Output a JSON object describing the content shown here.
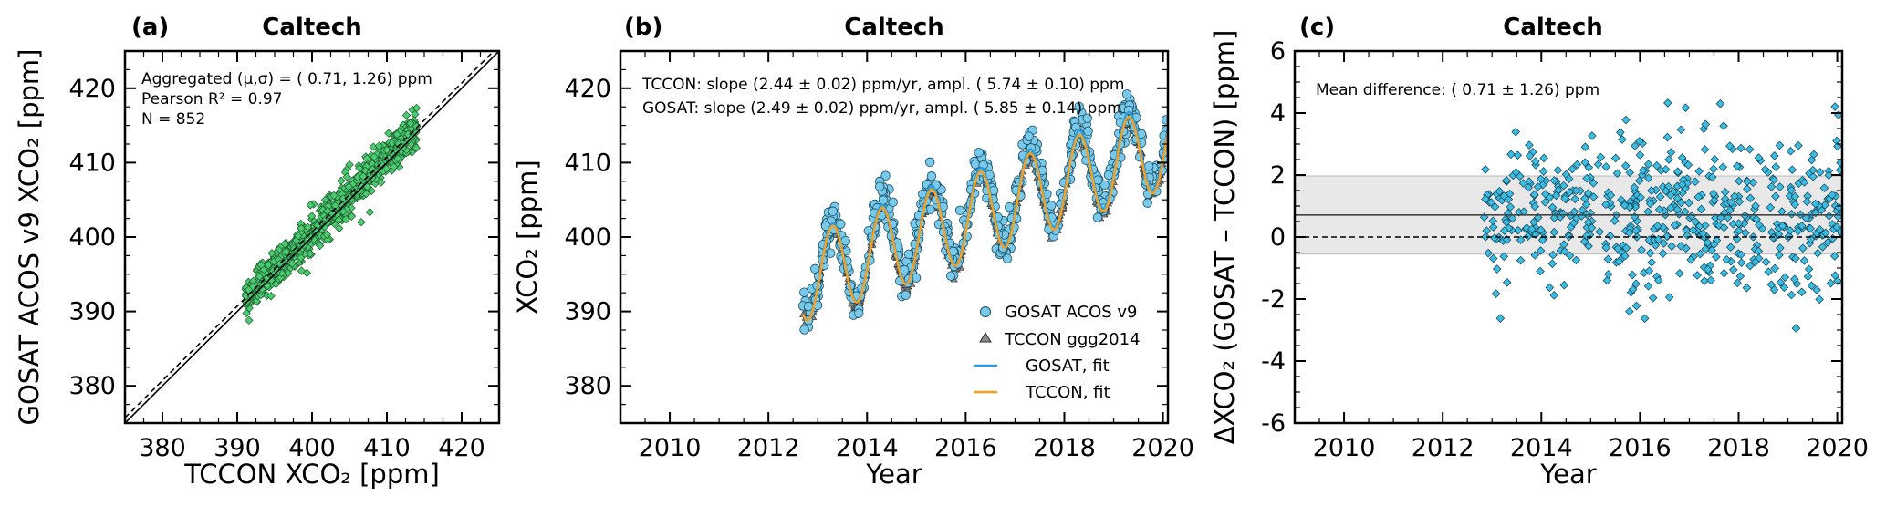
{
  "colors": {
    "scatter_green": "#4ccc70",
    "gosat_cyan": "#79c9ea",
    "tccon_gray": "#8a8a8a",
    "gosat_fit": "#2a9de0",
    "tccon_fit": "#f5a020",
    "diff_cyan": "#3cbce0",
    "band_fill": "#e8e8e8"
  },
  "chart_data": [
    {
      "type": "scatter",
      "panel_label": "(a)",
      "title": "Caltech",
      "xlabel": "TCCON XCO₂ [ppm]",
      "ylabel": "GOSAT ACOS v9 XCO₂ [ppm]",
      "xlim": [
        375,
        425
      ],
      "ylim": [
        375,
        425
      ],
      "xticks": [
        380,
        390,
        400,
        410,
        420
      ],
      "yticks": [
        380,
        390,
        400,
        410,
        420
      ],
      "annotations": [
        "Aggregated (μ,σ) = ( 0.71, 1.26) ppm",
        "Pearson R² = 0.97",
        "N =  852"
      ],
      "reference_lines": [
        {
          "name": "1:1 line",
          "style": "solid",
          "slope": 1,
          "intercept": 0
        },
        {
          "name": "mean offset",
          "style": "dashed",
          "slope": 1,
          "intercept": 0.71
        }
      ],
      "series": [
        {
          "name": "GOSAT vs TCCON",
          "n": 852,
          "x_range": [
            391,
            414
          ],
          "mean_offset": 0.71,
          "sd": 1.26
        }
      ]
    },
    {
      "type": "line",
      "panel_label": "(b)",
      "title": "Caltech",
      "xlabel": "Year",
      "ylabel": "XCO₂ [ppm]",
      "xlim": [
        2009,
        2020.1
      ],
      "ylim": [
        375,
        425
      ],
      "xticks": [
        2010,
        2012,
        2014,
        2016,
        2018,
        2020
      ],
      "yticks": [
        380,
        390,
        400,
        410,
        420
      ],
      "annotations": [
        "TCCON: slope (2.44 ± 0.02) ppm/yr, ampl. ( 5.74 ± 0.10) ppm",
        "GOSAT: slope (2.49 ± 0.02) ppm/yr, ampl. ( 5.85 ± 0.14) ppm"
      ],
      "legend": [
        "GOSAT ACOS v9",
        "TCCON ggg2014",
        "GOSAT, fit",
        "TCCON, fit"
      ],
      "legend_position": "bottom-right",
      "series": [
        {
          "name": "GOSAT ACOS v9",
          "marker": "circle",
          "t_range": [
            2012.7,
            2020.1
          ]
        },
        {
          "name": "TCCON ggg2014",
          "marker": "triangle",
          "t_range": [
            2012.7,
            2020.1
          ]
        },
        {
          "name": "GOSAT, fit",
          "t0": 2012.7,
          "base": 394.5,
          "slope": 2.49,
          "amplitude": 5.85
        },
        {
          "name": "TCCON, fit",
          "t0": 2012.7,
          "base": 394.3,
          "slope": 2.44,
          "amplitude": 5.74
        }
      ]
    },
    {
      "type": "scatter",
      "panel_label": "(c)",
      "title": "Caltech",
      "xlabel": "Year",
      "ylabel": "ΔXCO₂ (GOSAT – TCCON) [ppm]",
      "xlim": [
        2009,
        2020.1
      ],
      "ylim": [
        -6,
        6
      ],
      "xticks": [
        2010,
        2012,
        2014,
        2016,
        2018,
        2020
      ],
      "yticks": [
        -6,
        -4,
        -2,
        0,
        2,
        4,
        6
      ],
      "annotations": [
        "Mean difference: ( 0.71 ± 1.26) ppm"
      ],
      "mean": 0.71,
      "sd": 1.26,
      "band": [
        -0.55,
        1.97
      ],
      "series": [
        {
          "name": "difference",
          "marker": "diamond",
          "t_range": [
            2012.8,
            2020.1
          ]
        }
      ]
    }
  ]
}
